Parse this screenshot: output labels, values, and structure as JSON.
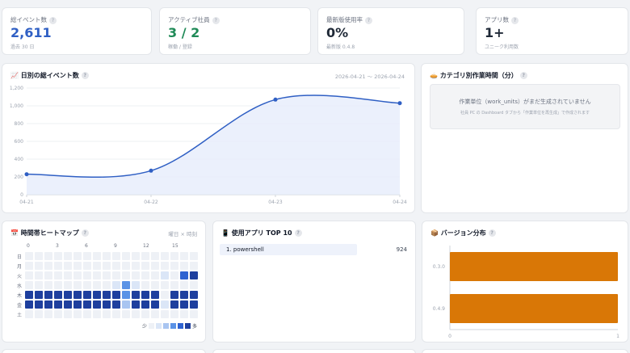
{
  "kpis": [
    {
      "label": "総イベント数",
      "value": "2,611",
      "sub": "過去 30 日",
      "color": "#2f5fc4"
    },
    {
      "label": "アクティブ社員",
      "value": "3 / 2",
      "sub": "稼働 / 登録",
      "color": "#1f8a57"
    },
    {
      "label": "最新版使用率",
      "value": "0%",
      "sub": "最新版 0.4.8",
      "color": "#111827"
    },
    {
      "label": "アプリ数",
      "value": "1+",
      "sub": "ユニーク利用数",
      "color": "#111827"
    }
  ],
  "daily": {
    "icon": "📈",
    "title": "日別の総イベント数",
    "date_range": "2026-04-21 〜 2026-04-24"
  },
  "category": {
    "icon": "🥧",
    "title": "カテゴリ別作業時間（分）",
    "empty_title": "作業単位（work_units）がまだ生成されていません",
    "empty_sub": "社員 PC の Dashboard タブから「作業単位を再生成」で作成されます"
  },
  "heatmap": {
    "icon": "📅",
    "title": "時間帯ヒートマップ",
    "meta": "曜日 × 時刻",
    "hour_labels": [
      "0",
      "3",
      "6",
      "9",
      "12",
      "15"
    ],
    "day_labels": [
      "日",
      "月",
      "火",
      "水",
      "木",
      "金",
      "土"
    ],
    "legend_low": "少",
    "legend_high": "多",
    "palette": [
      "#eef1f6",
      "#dbe6f7",
      "#a9c5f1",
      "#5b93e6",
      "#2f63d1",
      "#1e3f9e"
    ],
    "rows": [
      [
        0,
        0,
        0,
        0,
        0,
        0,
        0,
        0,
        0,
        0,
        0,
        0,
        0,
        0,
        0,
        0,
        0,
        0,
        0,
        0
      ],
      [
        0,
        0,
        0,
        0,
        0,
        0,
        0,
        0,
        0,
        0,
        0,
        0,
        0,
        0,
        0,
        0,
        0,
        0,
        0,
        0
      ],
      [
        0,
        0,
        0,
        0,
        0,
        0,
        0,
        0,
        0,
        0,
        0,
        0,
        0,
        0,
        1,
        0,
        4,
        5,
        5,
        0
      ],
      [
        0,
        0,
        0,
        0,
        0,
        0,
        0,
        0,
        0,
        1,
        3,
        1,
        0,
        0,
        0,
        0,
        0,
        0,
        0,
        0
      ],
      [
        5,
        5,
        5,
        5,
        5,
        5,
        5,
        5,
        5,
        5,
        3,
        5,
        5,
        5,
        0,
        5,
        5,
        5,
        5,
        5
      ],
      [
        5,
        5,
        5,
        5,
        5,
        5,
        5,
        5,
        5,
        5,
        2,
        5,
        5,
        5,
        1,
        5,
        5,
        5,
        5,
        5
      ],
      [
        0,
        0,
        0,
        0,
        0,
        0,
        0,
        0,
        0,
        0,
        0,
        0,
        0,
        0,
        0,
        0,
        0,
        0,
        0,
        0
      ]
    ]
  },
  "apps": {
    "icon": "📱",
    "title": "使用アプリ TOP 10",
    "items": [
      {
        "name": "1. powershell",
        "count": "924",
        "share": 1.0
      }
    ]
  },
  "versions": {
    "icon": "📦",
    "title": "バージョン分布",
    "bar_color": "#d97706",
    "items": [
      {
        "label": "0.3.0",
        "value": 1
      },
      {
        "label": "0.4.9",
        "value": 1
      }
    ],
    "x_ticks": [
      "0",
      "1"
    ]
  },
  "chart_data": {
    "type": "line",
    "x": [
      "04-21",
      "04-22",
      "04-23",
      "04-24"
    ],
    "values": [
      230,
      270,
      1070,
      1030
    ],
    "yticks": [
      "0",
      "200",
      "400",
      "600",
      "800",
      "1,000",
      "1,200"
    ],
    "ylim": [
      0,
      1200
    ],
    "line_color": "#2f5fc4",
    "fill_color": "#e6ecfb",
    "grid": true
  }
}
